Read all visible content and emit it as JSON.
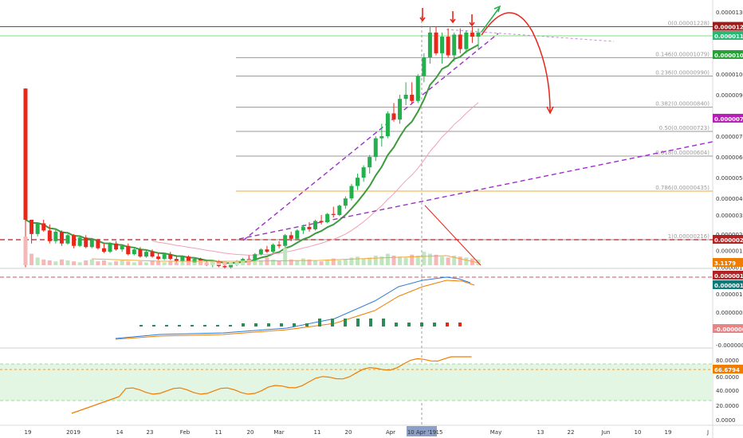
{
  "chart_data": [
    {
      "type": "candlestick",
      "price_axis": {
        "ticks": [
          "0.00001300",
          "0.00001200",
          "0.00001100",
          "0.00001000",
          "0.00000900",
          "0.00000800",
          "0.00000700",
          "0.00000600",
          "0.00000500",
          "0.00000400",
          "0.00000320",
          "0.00000240",
          "0.00000170",
          "0.00000100"
        ],
        "tick_values": [
          1300,
          1200,
          1100,
          1000,
          900,
          800,
          700,
          600,
          500,
          400,
          320,
          240,
          170,
          100
        ]
      },
      "price_tags": [
        {
          "label": "0.00001228",
          "value": 1228,
          "color": "#9c1b1b"
        },
        {
          "label": "0.00001184",
          "value": 1184,
          "color": "#2bb673"
        },
        {
          "label": "0.00001092",
          "value": 1092,
          "color": "#26a037"
        },
        {
          "label": "0.00000785",
          "value": 785,
          "color": "#b51fb5"
        },
        {
          "label": "0.00000216",
          "value": 216,
          "color": "#b22222"
        }
      ],
      "fib_levels": [
        {
          "label": "0(0.00001228)",
          "value": 1228
        },
        {
          "label": "0.146(0.00001079)",
          "value": 1079
        },
        {
          "label": "0.236(0.00000990)",
          "value": 990
        },
        {
          "label": "0.382(0.00000840)",
          "value": 840
        },
        {
          "label": "0.50(0.00000723)",
          "value": 723
        },
        {
          "label": "0.618(0.00000604)",
          "value": 604
        },
        {
          "label": "0.786(0.00000435)",
          "value": 435
        },
        {
          "label": "1(0.00000216)",
          "value": 216
        }
      ],
      "candles": [
        [
          930,
          930,
          100,
          300
        ],
        [
          300,
          300,
          200,
          240
        ],
        [
          240,
          290,
          230,
          285
        ],
        [
          285,
          300,
          250,
          255
        ],
        [
          255,
          280,
          200,
          210
        ],
        [
          210,
          260,
          200,
          250
        ],
        [
          250,
          255,
          190,
          200
        ],
        [
          200,
          240,
          195,
          235
        ],
        [
          235,
          240,
          180,
          190
        ],
        [
          190,
          230,
          185,
          225
        ],
        [
          225,
          235,
          180,
          185
        ],
        [
          185,
          220,
          180,
          215
        ],
        [
          215,
          220,
          175,
          180
        ],
        [
          180,
          200,
          160,
          165
        ],
        [
          165,
          205,
          160,
          200
        ],
        [
          200,
          210,
          170,
          175
        ],
        [
          175,
          195,
          165,
          190
        ],
        [
          190,
          200,
          150,
          155
        ],
        [
          155,
          180,
          150,
          175
        ],
        [
          175,
          185,
          140,
          145
        ],
        [
          145,
          170,
          140,
          165
        ],
        [
          165,
          175,
          140,
          145
        ],
        [
          145,
          160,
          130,
          135
        ],
        [
          135,
          160,
          130,
          155
        ],
        [
          155,
          165,
          130,
          135
        ],
        [
          135,
          150,
          120,
          125
        ],
        [
          125,
          150,
          120,
          145
        ],
        [
          145,
          150,
          115,
          120
        ],
        [
          120,
          140,
          115,
          135
        ],
        [
          135,
          140,
          110,
          115
        ],
        [
          115,
          130,
          105,
          110
        ],
        [
          110,
          130,
          100,
          125
        ],
        [
          125,
          130,
          100,
          105
        ],
        [
          105,
          115,
          95,
          100
        ],
        [
          100,
          120,
          95,
          115
        ],
        [
          115,
          130,
          105,
          125
        ],
        [
          125,
          140,
          115,
          135
        ],
        [
          135,
          150,
          120,
          130
        ],
        [
          130,
          160,
          125,
          155
        ],
        [
          155,
          180,
          150,
          175
        ],
        [
          175,
          190,
          160,
          165
        ],
        [
          165,
          200,
          160,
          195
        ],
        [
          195,
          210,
          180,
          190
        ],
        [
          190,
          240,
          185,
          235
        ],
        [
          235,
          250,
          210,
          220
        ],
        [
          220,
          260,
          215,
          255
        ],
        [
          255,
          280,
          240,
          270
        ],
        [
          270,
          290,
          250,
          260
        ],
        [
          260,
          300,
          255,
          295
        ],
        [
          295,
          320,
          280,
          290
        ],
        [
          290,
          330,
          285,
          325
        ],
        [
          325,
          360,
          310,
          320
        ],
        [
          320,
          370,
          315,
          365
        ],
        [
          365,
          410,
          350,
          400
        ],
        [
          400,
          470,
          390,
          460
        ],
        [
          460,
          520,
          440,
          500
        ],
        [
          500,
          560,
          480,
          550
        ],
        [
          550,
          610,
          520,
          600
        ],
        [
          600,
          700,
          580,
          690
        ],
        [
          690,
          760,
          650,
          700
        ],
        [
          700,
          820,
          690,
          810
        ],
        [
          810,
          860,
          770,
          780
        ],
        [
          780,
          900,
          760,
          880
        ],
        [
          880,
          960,
          850,
          900
        ],
        [
          900,
          960,
          860,
          870
        ],
        [
          870,
          1000,
          860,
          990
        ],
        [
          990,
          1100,
          960,
          1080
        ],
        [
          1080,
          1230,
          1050,
          1200
        ],
        [
          1200,
          1230,
          1090,
          1100
        ],
        [
          1100,
          1200,
          1050,
          1180
        ],
        [
          1180,
          1220,
          1080,
          1090
        ],
        [
          1090,
          1200,
          1060,
          1190
        ],
        [
          1190,
          1220,
          1100,
          1120
        ],
        [
          1120,
          1210,
          1100,
          1200
        ],
        [
          1200,
          1230,
          1150,
          1180
        ],
        [
          1180,
          1220,
          1120,
          1200
        ]
      ],
      "volume_tag": "3.1179",
      "macd_tags": [
        {
          "label": "0.00000130",
          "color": "#b22222"
        },
        {
          "label": "0.00000123",
          "color": "#0f7a7a"
        },
        {
          "label": "-0.00000007",
          "color": "#e58585"
        }
      ],
      "macd_ticks": [
        "0.00000100",
        "0.00000050",
        "0.00000000",
        "-0.00000050"
      ],
      "rsi_ticks": [
        "80.0000",
        "60.0000",
        "40.0000",
        "20.0000",
        "0.0000"
      ],
      "rsi_tag": "66.6794",
      "x_axis_ticks": [
        "19",
        "2019",
        "14",
        "23",
        "Feb",
        "11",
        "20",
        "Mar",
        "11",
        "20",
        "Apr",
        "15",
        "May",
        "13",
        "22",
        "Jun",
        "10",
        "19",
        "J"
      ],
      "crosshair_date": "10 Apr '19",
      "colors": {
        "up": "#22b14c",
        "down": "#e8261a",
        "ema": "#3d9b3d",
        "ma": "#f2a0b5",
        "trend": "#9b30c9",
        "fib": "#9a9a9a",
        "rsi": "#f07c00",
        "macd": "#2a7bd8",
        "signal": "#f07c00"
      }
    }
  ]
}
